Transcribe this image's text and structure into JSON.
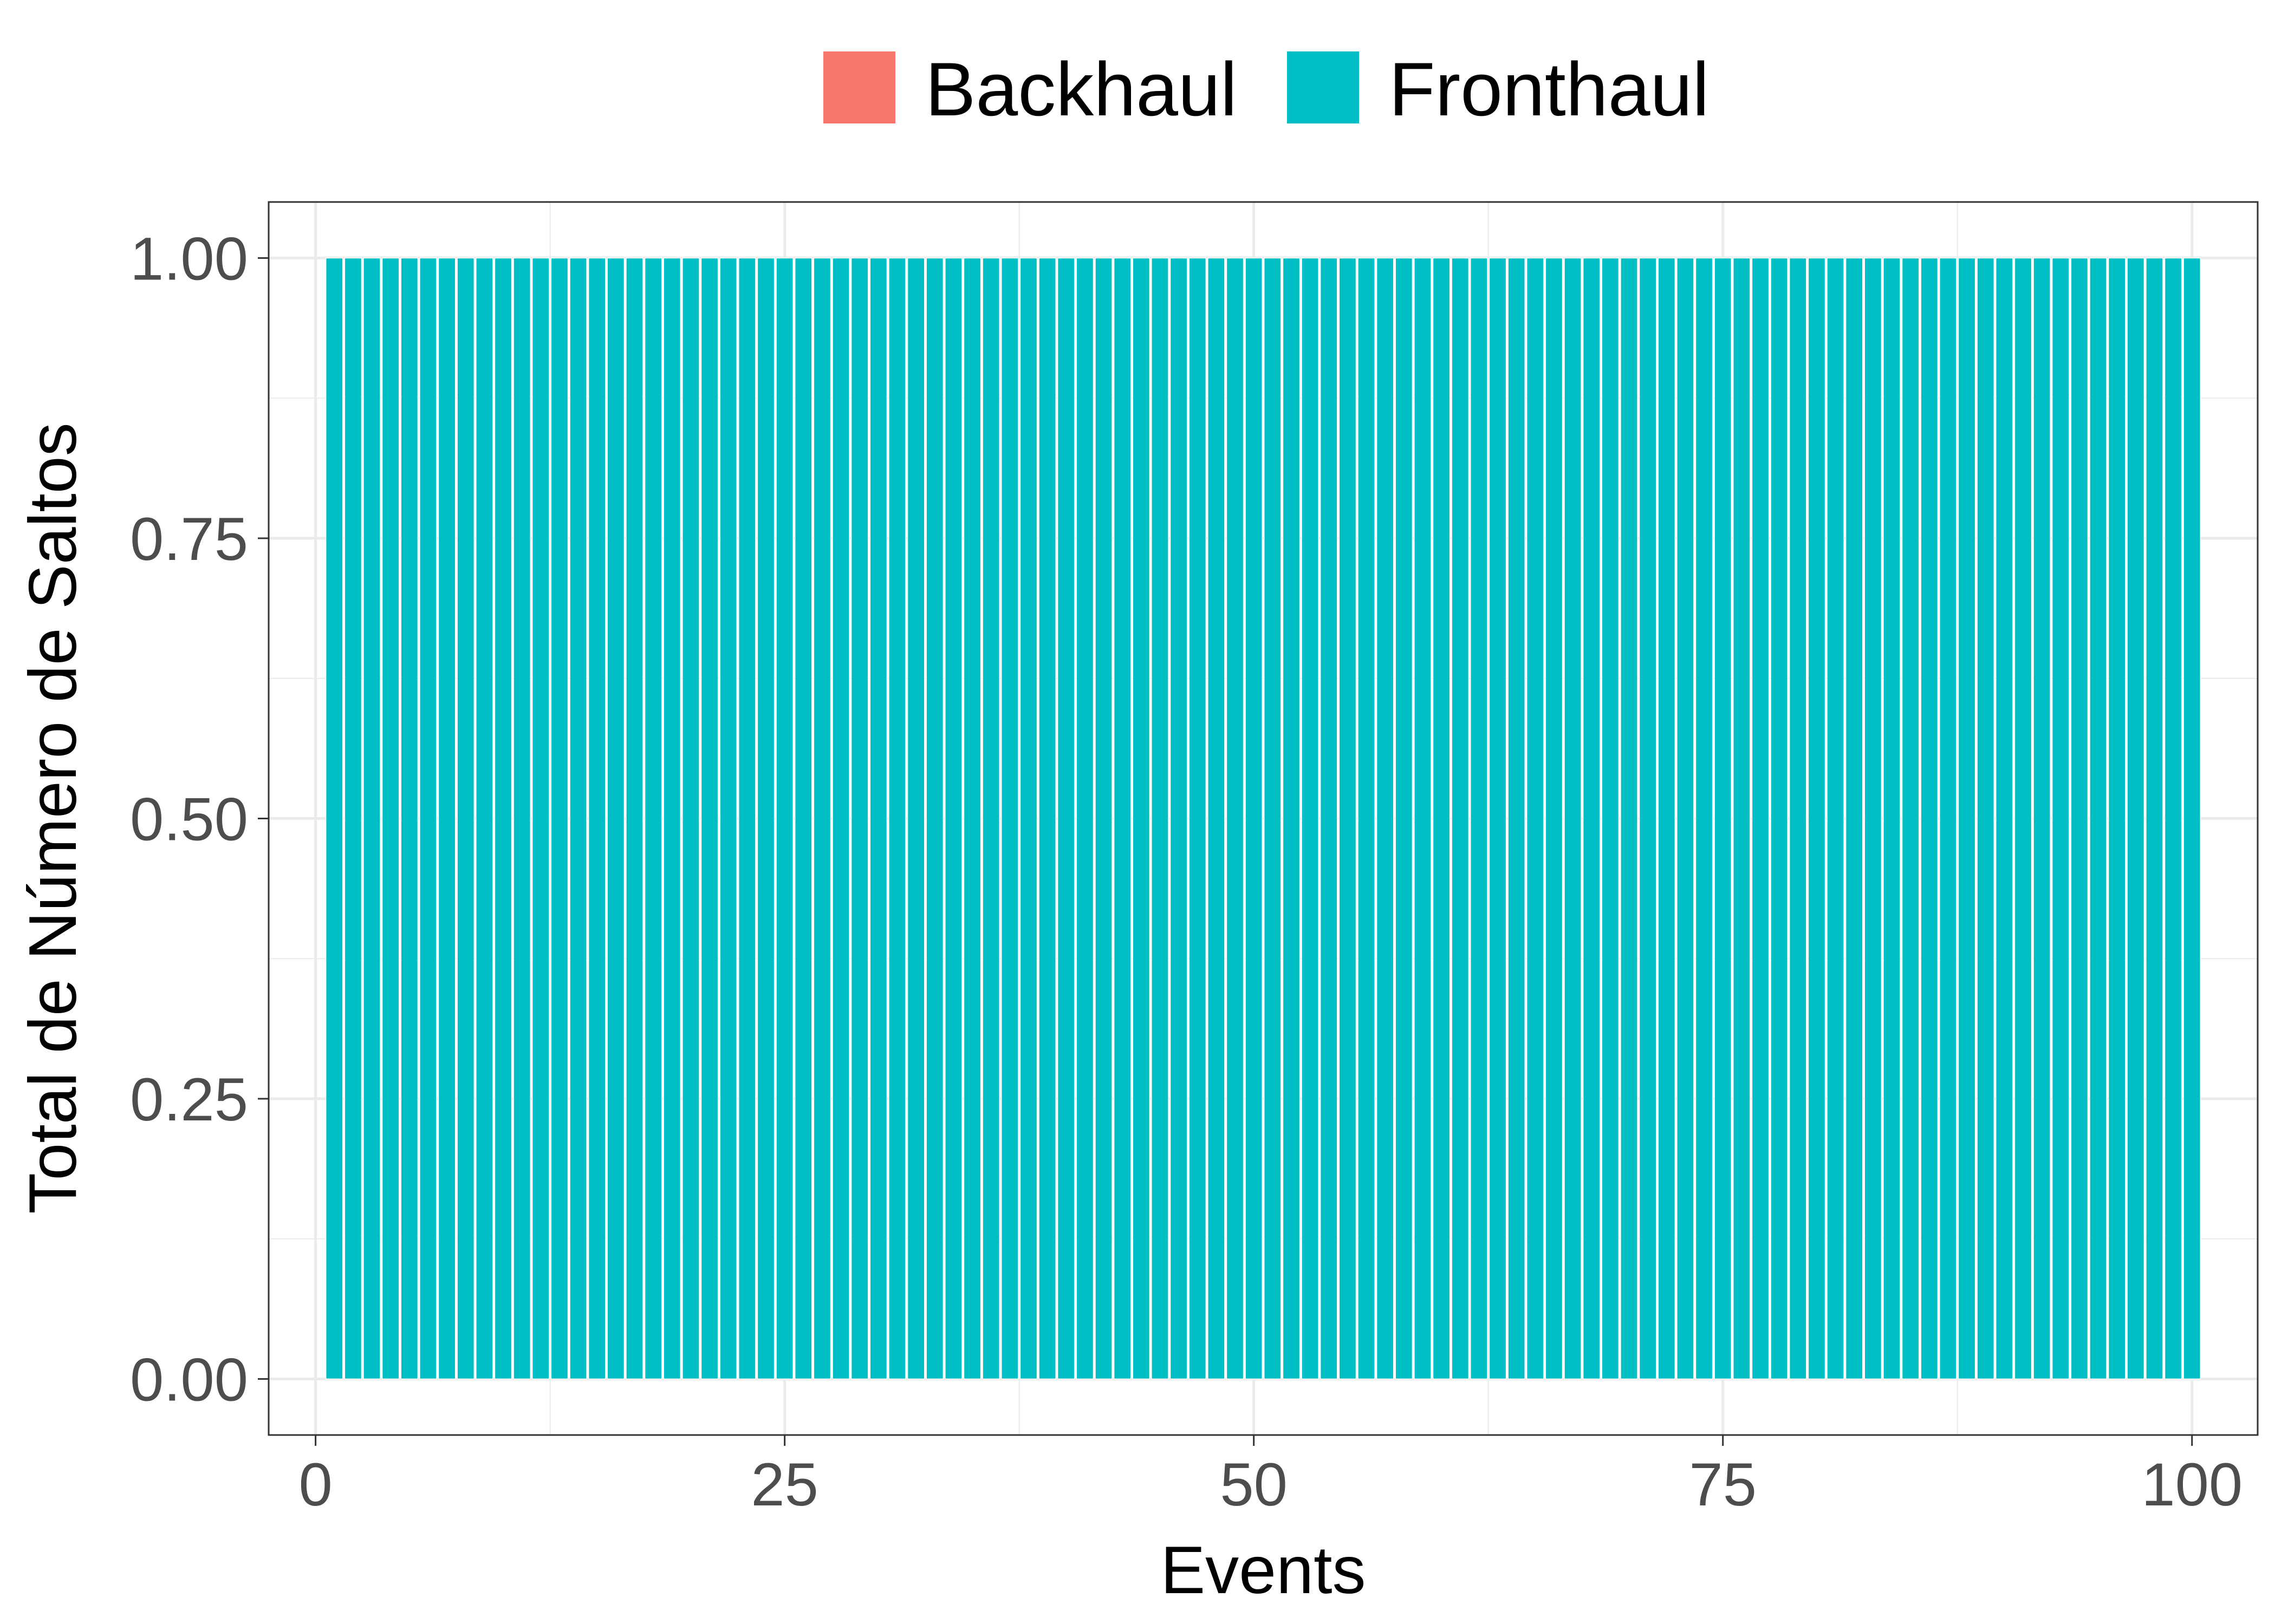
{
  "chart_data": {
    "type": "bar",
    "xlabel": "Events",
    "ylabel": "Total de Número de Saltos",
    "xlim": [
      -2.5,
      103.5
    ],
    "ylim": [
      -0.05,
      1.05
    ],
    "x_ticks": [
      0,
      25,
      50,
      75,
      100
    ],
    "x_tick_labels": [
      "0",
      "25",
      "50",
      "75",
      "100"
    ],
    "y_ticks": [
      0,
      0.25,
      0.5,
      0.75,
      1
    ],
    "y_tick_labels": [
      "0.00",
      "0.25",
      "0.50",
      "0.75",
      "1.00"
    ],
    "grid": true,
    "legend_position": "top",
    "legend": [
      {
        "name": "Backhaul",
        "color": "#F8766D"
      },
      {
        "name": "Fronthaul",
        "color": "#00BFC4"
      }
    ],
    "series": [
      {
        "name": "Backhaul",
        "color": "#F8766D",
        "x": [],
        "values": []
      },
      {
        "name": "Fronthaul",
        "color": "#00BFC4",
        "x": [
          1,
          2,
          3,
          4,
          5,
          6,
          7,
          8,
          9,
          10,
          11,
          12,
          13,
          14,
          15,
          16,
          17,
          18,
          19,
          20,
          21,
          22,
          23,
          24,
          25,
          26,
          27,
          28,
          29,
          30,
          31,
          32,
          33,
          34,
          35,
          36,
          37,
          38,
          39,
          40,
          41,
          42,
          43,
          44,
          45,
          46,
          47,
          48,
          49,
          50,
          51,
          52,
          53,
          54,
          55,
          56,
          57,
          58,
          59,
          60,
          61,
          62,
          63,
          64,
          65,
          66,
          67,
          68,
          69,
          70,
          71,
          72,
          73,
          74,
          75,
          76,
          77,
          78,
          79,
          80,
          81,
          82,
          83,
          84,
          85,
          86,
          87,
          88,
          89,
          90,
          91,
          92,
          93,
          94,
          95,
          96,
          97,
          98,
          99,
          100
        ],
        "values": [
          1,
          1,
          1,
          1,
          1,
          1,
          1,
          1,
          1,
          1,
          1,
          1,
          1,
          1,
          1,
          1,
          1,
          1,
          1,
          1,
          1,
          1,
          1,
          1,
          1,
          1,
          1,
          1,
          1,
          1,
          1,
          1,
          1,
          1,
          1,
          1,
          1,
          1,
          1,
          1,
          1,
          1,
          1,
          1,
          1,
          1,
          1,
          1,
          1,
          1,
          1,
          1,
          1,
          1,
          1,
          1,
          1,
          1,
          1,
          1,
          1,
          1,
          1,
          1,
          1,
          1,
          1,
          1,
          1,
          1,
          1,
          1,
          1,
          1,
          1,
          1,
          1,
          1,
          1,
          1,
          1,
          1,
          1,
          1,
          1,
          1,
          1,
          1,
          1,
          1,
          1,
          1,
          1,
          1,
          1,
          1,
          1,
          1,
          1,
          1
        ]
      }
    ]
  }
}
